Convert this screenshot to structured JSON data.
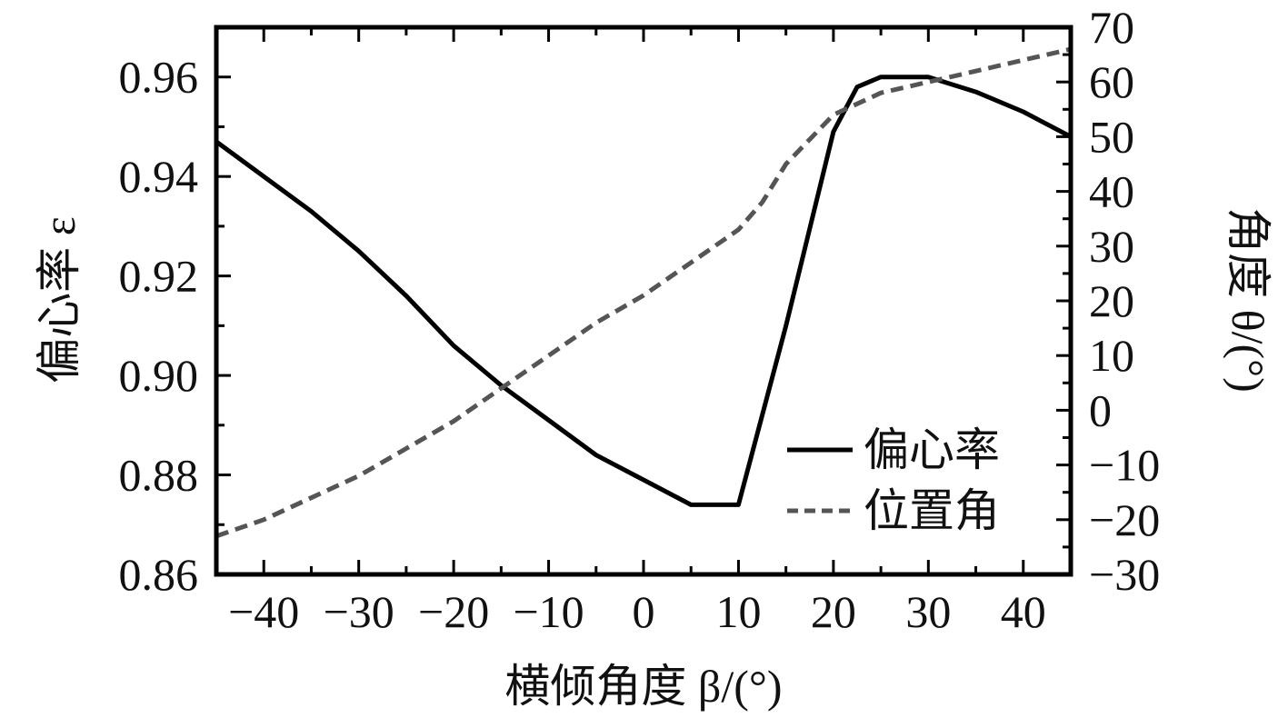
{
  "chart_data": {
    "type": "line",
    "title": "",
    "xlabel": "横倾角度 β/(°)",
    "ylabel_left": "偏心率 ε",
    "ylabel_right": "角度 θ/(°)",
    "xlim": [
      -45,
      45
    ],
    "ylim_left": [
      0.86,
      0.97
    ],
    "ylim_right": [
      -30,
      70
    ],
    "x_ticks": [
      -40,
      -30,
      -20,
      -10,
      0,
      10,
      20,
      30,
      40
    ],
    "x_tick_labels": [
      "−40",
      "−30",
      "−20",
      "−10",
      "0",
      "10",
      "20",
      "30",
      "40"
    ],
    "y_left_ticks": [
      0.86,
      0.88,
      0.9,
      0.92,
      0.94,
      0.96
    ],
    "y_left_tick_labels": [
      "0.86",
      "0.88",
      "0.90",
      "0.92",
      "0.94",
      "0.96"
    ],
    "y_right_ticks": [
      -30,
      -20,
      -10,
      0,
      10,
      20,
      30,
      40,
      50,
      60,
      70
    ],
    "y_right_tick_labels": [
      "−30",
      "−20",
      "−10",
      "0",
      "10",
      "20",
      "30",
      "40",
      "50",
      "60",
      "70"
    ],
    "grid": false,
    "legend_position": "bottom-right",
    "series": [
      {
        "name": "偏心率",
        "axis": "left",
        "style": "solid",
        "color": "#000000",
        "x": [
          -45,
          -35,
          -30,
          -25,
          -20,
          -15,
          -10,
          -5,
          0,
          5,
          10,
          15,
          20,
          22.5,
          25,
          30,
          35,
          40,
          45
        ],
        "y": [
          0.947,
          0.933,
          0.925,
          0.916,
          0.906,
          0.898,
          0.891,
          0.884,
          0.879,
          0.874,
          0.874,
          0.91,
          0.949,
          0.958,
          0.96,
          0.96,
          0.957,
          0.953,
          0.948
        ]
      },
      {
        "name": "位置角",
        "axis": "right",
        "style": "dashed",
        "color": "#555555",
        "x": [
          -45,
          -40,
          -35,
          -30,
          -25,
          -20,
          -15,
          -10,
          -5,
          0,
          5,
          10,
          12.5,
          15,
          20,
          25,
          30,
          35,
          40,
          45
        ],
        "y": [
          -23,
          -20,
          -16,
          -12,
          -7,
          -2,
          4,
          10,
          16,
          21,
          27,
          33,
          38,
          45,
          54,
          58,
          60,
          62,
          64,
          66
        ]
      }
    ]
  }
}
